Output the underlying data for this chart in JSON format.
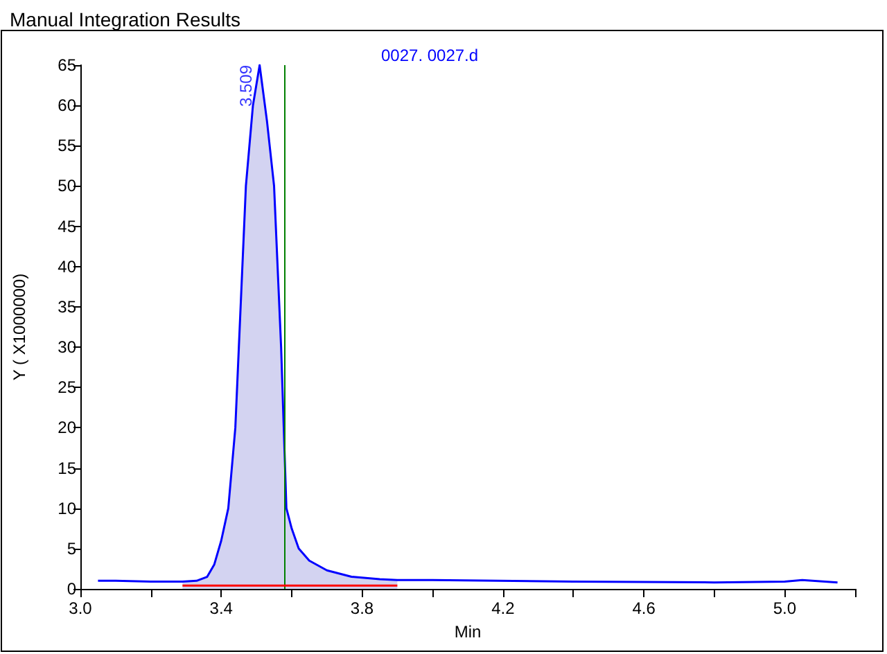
{
  "chart_data": {
    "type": "line",
    "title": "Manual Integration Results",
    "xlabel": "Min",
    "ylabel": "Y ( X1000000)",
    "annotations": [
      "0027. 0027.d",
      {
        "text": "3.509",
        "x": 3.509,
        "y": 65
      }
    ],
    "series": [
      {
        "type": "area",
        "color": "#c8c8ee",
        "x": [
          3.29,
          3.33,
          3.36,
          3.38,
          3.4,
          3.42,
          3.44,
          3.45,
          3.47,
          3.49,
          3.509,
          3.53,
          3.55,
          3.57,
          3.585,
          3.6,
          3.62,
          3.65,
          3.7,
          3.77,
          3.85,
          3.9
        ],
        "values": [
          0.9,
          1.0,
          1.5,
          3,
          6,
          10,
          20,
          30,
          50,
          60,
          65,
          58,
          50,
          30,
          10,
          7.5,
          5,
          3.5,
          2.3,
          1.5,
          1.2,
          1.1
        ]
      },
      {
        "color": "#0000ff",
        "x": [
          3.05,
          3.1,
          3.2,
          3.29,
          3.33,
          3.36,
          3.38,
          3.4,
          3.42,
          3.44,
          3.45,
          3.47,
          3.49,
          3.509,
          3.53,
          3.55,
          3.57,
          3.585,
          3.6,
          3.62,
          3.65,
          3.7,
          3.77,
          3.85,
          3.9,
          4.0,
          4.4,
          4.8,
          5.0,
          5.05,
          5.15
        ],
        "values": [
          1.0,
          1.0,
          0.9,
          0.9,
          1.0,
          1.5,
          3,
          6,
          10,
          20,
          30,
          50,
          60,
          65,
          58,
          50,
          30,
          10,
          7.5,
          5,
          3.5,
          2.3,
          1.5,
          1.2,
          1.1,
          1.1,
          0.9,
          0.8,
          0.9,
          1.1,
          0.8
        ]
      },
      {
        "type": "line",
        "color": "#ff0000",
        "x": [
          3.29,
          3.6,
          3.9
        ],
        "values": [
          0.4,
          0.4,
          0.4
        ]
      }
    ],
    "ref_lines": [
      {
        "axis": "x",
        "value": 3.585,
        "color": "#008000"
      }
    ],
    "xlim": [
      3.0,
      5.2
    ],
    "xticks": [
      {
        "value": 3.0,
        "label": "3.0"
      },
      {
        "value": 3.2,
        "label": null
      },
      {
        "value": 3.4,
        "label": "3.4"
      },
      {
        "value": 3.6,
        "label": null
      },
      {
        "value": 3.8,
        "label": "3.8"
      },
      {
        "value": 4.0,
        "label": null
      },
      {
        "value": 4.2,
        "label": "4.2"
      },
      {
        "value": 4.4,
        "label": null
      },
      {
        "value": 4.6,
        "label": "4.6"
      },
      {
        "value": 4.8,
        "label": null
      },
      {
        "value": 5.0,
        "label": "5.0"
      },
      {
        "value": 5.2,
        "label": null
      }
    ],
    "ylim": [
      0,
      65
    ],
    "yticks": [
      0,
      5,
      10,
      15,
      20,
      25,
      30,
      35,
      40,
      45,
      50,
      55,
      60,
      65
    ],
    "grid": false,
    "marker": "none",
    "line_style": "solid"
  }
}
